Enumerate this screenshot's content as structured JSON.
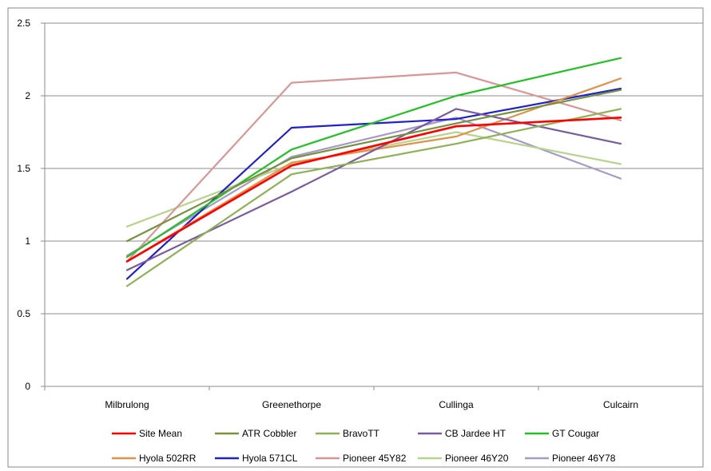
{
  "chart_data": {
    "type": "line",
    "categories": [
      "Milbrulong",
      "Greenethorpe",
      "Cullinga",
      "Culcairn"
    ],
    "ylim": [
      0,
      2.5
    ],
    "yticks": [
      "0",
      "0.5",
      "1",
      "1.5",
      "2",
      "2.5"
    ],
    "grid": "horizontal",
    "legend_position": "bottom",
    "series": [
      {
        "name": "Site Mean",
        "color": "#ff0000",
        "values": [
          0.86,
          1.52,
          1.79,
          1.85
        ]
      },
      {
        "name": "ATR Cobbler",
        "color": "#76923c",
        "values": [
          1.0,
          1.57,
          1.81,
          2.04
        ]
      },
      {
        "name": "BravoTT",
        "color": "#8db255",
        "values": [
          0.69,
          1.46,
          1.67,
          1.91
        ]
      },
      {
        "name": "CB Jardee HT",
        "color": "#7a5aa0",
        "values": [
          0.8,
          1.34,
          1.91,
          1.67
        ]
      },
      {
        "name": "GT Cougar",
        "color": "#22c122",
        "values": [
          0.89,
          1.63,
          2.0,
          2.26
        ]
      },
      {
        "name": "Hyola 502RR",
        "color": "#e2914a",
        "values": [
          0.86,
          1.54,
          1.72,
          2.12
        ]
      },
      {
        "name": "Hyola 571CL",
        "color": "#2020d0",
        "values": [
          0.74,
          1.78,
          1.84,
          2.05
        ]
      },
      {
        "name": "Pioneer 45Y82",
        "color": "#d99694",
        "values": [
          0.86,
          2.09,
          2.16,
          1.83
        ]
      },
      {
        "name": "Pioneer 46Y20",
        "color": "#b7d48c",
        "values": [
          1.1,
          1.53,
          1.75,
          1.53
        ]
      },
      {
        "name": "Pioneer 46Y78",
        "color": "#a599c8",
        "values": [
          0.9,
          1.58,
          1.85,
          1.43
        ]
      }
    ]
  }
}
